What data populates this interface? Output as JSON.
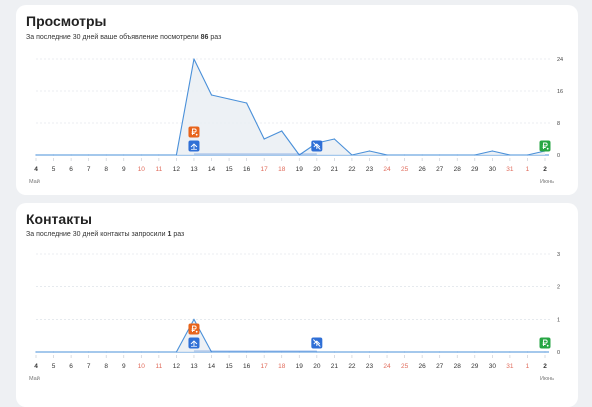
{
  "views": {
    "title": "Просмотры",
    "subtitle_prefix": "За последние 30 дней ваше объявление посмотрели",
    "subtitle_count": "86",
    "subtitle_suffix": "раз"
  },
  "contacts": {
    "title": "Контакты",
    "subtitle_prefix": "За последние 30 дней контакты запросили",
    "subtitle_count": "1",
    "subtitle_suffix": "раз"
  },
  "months": {
    "start": "Май",
    "end": "Июнь"
  },
  "colors": {
    "line": "#4a90d9",
    "promo_orange": "#e8641b",
    "promo_blue": "#2f6fd6",
    "promo_green": "#27a644",
    "weekend": "#e06b5b"
  },
  "chart_data": [
    {
      "type": "line",
      "x": [
        "4",
        "5",
        "6",
        "7",
        "8",
        "9",
        "10",
        "11",
        "12",
        "13",
        "14",
        "15",
        "16",
        "17",
        "18",
        "19",
        "20",
        "21",
        "22",
        "23",
        "24",
        "25",
        "26",
        "27",
        "28",
        "29",
        "30",
        "31",
        "1",
        "2"
      ],
      "weekend_ticks": [
        "10",
        "11",
        "17",
        "18",
        "24",
        "25",
        "31",
        "1"
      ],
      "y_ticks": [
        0,
        8,
        16,
        24
      ],
      "ylim": [
        0,
        24
      ],
      "series": [
        {
          "values": [
            0,
            0,
            0,
            0,
            0,
            0,
            0,
            0,
            0,
            24,
            15,
            14,
            13,
            4,
            6,
            0,
            3,
            4,
            0,
            1,
            0,
            0,
            0,
            0,
            0,
            0,
            1,
            0,
            0,
            1
          ]
        }
      ],
      "markers": [
        {
          "day": "13",
          "kind": "ruble",
          "color": "orange",
          "icon": "ruble-promo-icon"
        },
        {
          "day": "13",
          "kind": "boost",
          "color": "blue",
          "icon": "boost-on-icon"
        },
        {
          "day": "20",
          "kind": "boost-off",
          "color": "blue",
          "icon": "boost-off-icon"
        },
        {
          "day": "2",
          "kind": "ruble",
          "color": "green",
          "icon": "ruble-promo-icon"
        }
      ]
    },
    {
      "type": "line",
      "x": [
        "4",
        "5",
        "6",
        "7",
        "8",
        "9",
        "10",
        "11",
        "12",
        "13",
        "14",
        "15",
        "16",
        "17",
        "18",
        "19",
        "20",
        "21",
        "22",
        "23",
        "24",
        "25",
        "26",
        "27",
        "28",
        "29",
        "30",
        "31",
        "1",
        "2"
      ],
      "weekend_ticks": [
        "10",
        "11",
        "17",
        "18",
        "24",
        "25",
        "31",
        "1"
      ],
      "y_ticks": [
        0,
        1,
        2,
        3
      ],
      "ylim": [
        0,
        3
      ],
      "series": [
        {
          "values": [
            0,
            0,
            0,
            0,
            0,
            0,
            0,
            0,
            0,
            1,
            0,
            0,
            0,
            0,
            0,
            0,
            0,
            0,
            0,
            0,
            0,
            0,
            0,
            0,
            0,
            0,
            0,
            0,
            0,
            0
          ]
        }
      ],
      "markers": [
        {
          "day": "13",
          "kind": "ruble",
          "color": "orange",
          "icon": "ruble-promo-icon"
        },
        {
          "day": "13",
          "kind": "boost",
          "color": "blue",
          "icon": "boost-on-icon"
        },
        {
          "day": "20",
          "kind": "boost-off",
          "color": "blue",
          "icon": "boost-off-icon"
        },
        {
          "day": "2",
          "kind": "ruble",
          "color": "green",
          "icon": "ruble-promo-icon"
        }
      ]
    }
  ]
}
